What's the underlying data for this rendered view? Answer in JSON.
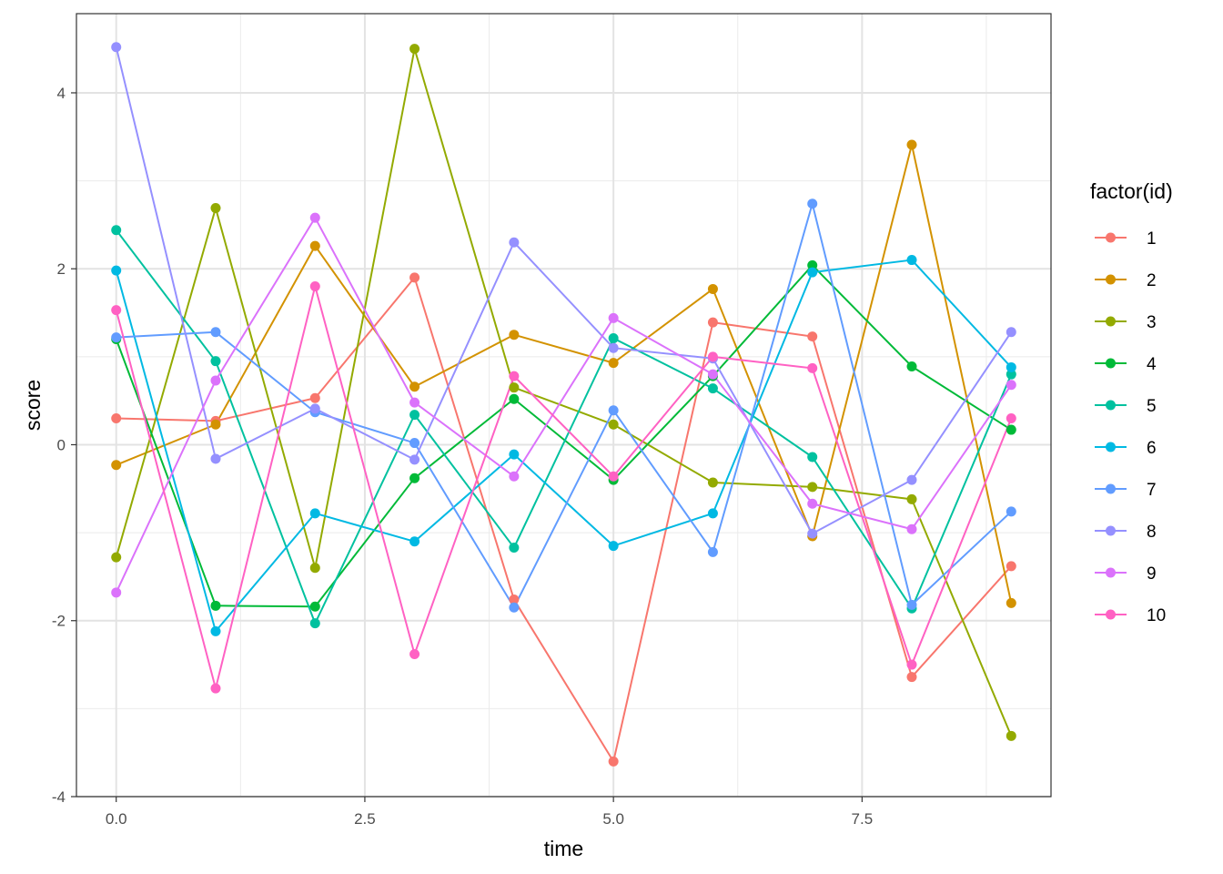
{
  "chart_data": {
    "type": "line",
    "xlabel": "time",
    "ylabel": "score",
    "xlim": [
      -0.4,
      9.4
    ],
    "ylim": [
      -4,
      4.9
    ],
    "x_ticks": [
      0,
      2.5,
      5,
      7.5
    ],
    "x_tick_labels": [
      "0.0",
      "2.5",
      "5.0",
      "7.5"
    ],
    "y_ticks": [
      -4,
      -2,
      0,
      2,
      4
    ],
    "y_tick_labels": [
      "-4",
      "-2",
      "0",
      "2",
      "4"
    ],
    "grid": true,
    "legend": {
      "title": "factor(id)",
      "position": "right"
    },
    "x": [
      0,
      1,
      2,
      3,
      4,
      5,
      6,
      7,
      8,
      9
    ],
    "series": [
      {
        "name": "1",
        "color": "#F8766D",
        "values": [
          0.3,
          0.27,
          0.53,
          1.9,
          -1.76,
          -3.6,
          1.39,
          1.23,
          -2.64,
          -1.38
        ]
      },
      {
        "name": "2",
        "color": "#D39200",
        "values": [
          -0.23,
          0.23,
          2.26,
          0.66,
          1.25,
          0.93,
          1.77,
          -1.04,
          3.41,
          -1.8
        ]
      },
      {
        "name": "3",
        "color": "#93AA00",
        "values": [
          -1.28,
          2.69,
          -1.4,
          4.5,
          0.65,
          0.23,
          -0.43,
          -0.48,
          -0.62,
          -3.31
        ]
      },
      {
        "name": "4",
        "color": "#00BA38",
        "values": [
          1.2,
          -1.83,
          -1.84,
          -0.38,
          0.52,
          -0.4,
          0.78,
          2.04,
          0.89,
          0.17
        ]
      },
      {
        "name": "5",
        "color": "#00C19F",
        "values": [
          2.44,
          0.95,
          -2.03,
          0.34,
          -1.17,
          1.21,
          0.64,
          -0.14,
          -1.86,
          0.8
        ]
      },
      {
        "name": "6",
        "color": "#00B9E3",
        "values": [
          1.98,
          -2.12,
          -0.78,
          -1.1,
          -0.11,
          -1.15,
          -0.78,
          1.96,
          2.1,
          0.88
        ]
      },
      {
        "name": "7",
        "color": "#619CFF",
        "values": [
          1.22,
          1.28,
          0.37,
          0.02,
          -1.85,
          0.39,
          -1.22,
          2.74,
          -1.82,
          -0.76
        ]
      },
      {
        "name": "8",
        "color": "#9590FF",
        "values": [
          4.52,
          -0.16,
          0.41,
          -0.17,
          2.3,
          1.1,
          0.98,
          -1.01,
          -0.4,
          1.28
        ]
      },
      {
        "name": "9",
        "color": "#DB72FB",
        "values": [
          -1.68,
          0.73,
          2.58,
          0.48,
          -0.36,
          1.44,
          0.8,
          -0.67,
          -0.96,
          0.68
        ]
      },
      {
        "name": "10",
        "color": "#FF61C3",
        "values": [
          1.53,
          -2.77,
          1.8,
          -2.38,
          0.78,
          -0.36,
          1.0,
          0.87,
          -2.5,
          0.3
        ]
      }
    ]
  }
}
